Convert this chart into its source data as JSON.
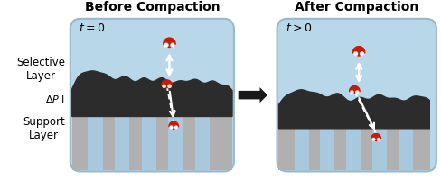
{
  "title_before": "Before Compaction",
  "title_after": "After Compaction",
  "label_t0": "$t = 0$",
  "label_t1": "$t > 0$",
  "label_selective": "Selective\nLayer",
  "label_support": "Support\nLayer",
  "bg_color": "#ffffff",
  "box_bg_top": "#b8d8ea",
  "box_bg_bot": "#c8dde8",
  "dark_layer": "#2c2c2c",
  "support_grey": "#b0b0b0",
  "support_stripe": "#a8c8de",
  "water_red": "#cc1a00",
  "water_white": "#ffffff",
  "figsize": [
    4.88,
    2.0
  ],
  "dpi": 100
}
